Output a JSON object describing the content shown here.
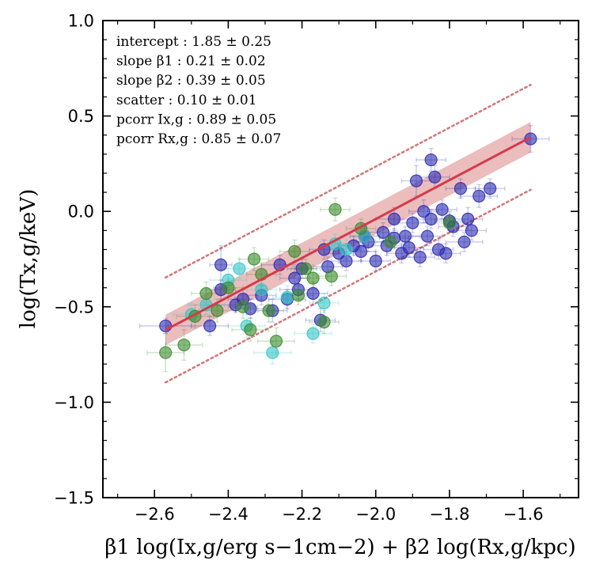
{
  "chart_data": {
    "type": "scatter",
    "title": "",
    "xlabel": "β1 log(Ix,g/erg s−1cm−2) + β2 log(Rx,g/kpc)",
    "ylabel": "log(Tx,g/keV)",
    "xlim": [
      -2.74,
      -1.45
    ],
    "ylim": [
      -1.5,
      1.0
    ],
    "x_ticks": [
      -2.6,
      -2.4,
      -2.2,
      -2.0,
      -1.8,
      -1.6
    ],
    "y_ticks": [
      1.0,
      0.5,
      0.0,
      -0.5,
      -1.0,
      -1.5
    ],
    "x_tick_labels": [
      "−2.6",
      "−2.4",
      "−2.2",
      "−2.0",
      "−1.8",
      "−1.6"
    ],
    "y_tick_labels": [
      "1.0",
      "0.5",
      "0.0",
      "−0.5",
      "−1.0",
      "−1.5"
    ],
    "colors": {
      "navy": "#2a2ab0",
      "teal": "#35c4c4",
      "green": "#3a8a2a",
      "fit_line": "#d43a4a",
      "band": "#e09a9a",
      "scatter_lines": "#d07a7a"
    },
    "fit": {
      "x_range": [
        -2.57,
        -1.58
      ],
      "slope": 1.02,
      "intercept_at_x0": 2.0,
      "band_halfwidth": 0.08,
      "scatter_offset": 0.275
    },
    "annotations": [
      "intercept :  1.85 ± 0.25",
      "slope β1 :  0.21 ± 0.02",
      "slope β2 :  0.39 ± 0.05",
      "scatter :  0.10 ± 0.01",
      "pcorr Ix,g :  0.89 ± 0.05",
      "pcorr Rx,g :  0.85 ± 0.07"
    ],
    "series": [
      {
        "name": "navy",
        "color": "#2a2ab0",
        "points": [
          [
            -2.57,
            -0.6,
            0.07,
            0.04
          ],
          [
            -2.45,
            -0.6,
            0.05,
            0.05
          ],
          [
            -2.42,
            -0.28,
            0.03,
            0.1
          ],
          [
            -2.42,
            -0.41,
            0.04,
            0.05
          ],
          [
            -2.38,
            -0.49,
            0.05,
            0.04
          ],
          [
            -2.34,
            -0.51,
            0.04,
            0.05
          ],
          [
            -2.31,
            -0.44,
            0.04,
            0.05
          ],
          [
            -2.28,
            -0.52,
            0.04,
            0.06
          ],
          [
            -2.26,
            -0.28,
            0.05,
            0.05
          ],
          [
            -2.24,
            -0.46,
            0.05,
            0.05
          ],
          [
            -2.22,
            -0.35,
            0.04,
            0.06
          ],
          [
            -2.21,
            -0.41,
            0.05,
            0.05
          ],
          [
            -2.2,
            -0.3,
            0.04,
            0.05
          ],
          [
            -2.17,
            -0.43,
            0.04,
            0.06
          ],
          [
            -2.15,
            -0.57,
            0.04,
            0.06
          ],
          [
            -2.14,
            -0.2,
            0.04,
            0.05
          ],
          [
            -2.1,
            -0.22,
            0.04,
            0.05
          ],
          [
            -2.08,
            -0.26,
            0.04,
            0.05
          ],
          [
            -2.06,
            -0.18,
            0.04,
            0.05
          ],
          [
            -2.04,
            -0.21,
            0.04,
            0.05
          ],
          [
            -2.02,
            -0.16,
            0.04,
            0.05
          ],
          [
            -2.0,
            -0.26,
            0.04,
            0.05
          ],
          [
            -1.98,
            -0.11,
            0.04,
            0.05
          ],
          [
            -1.97,
            -0.18,
            0.04,
            0.05
          ],
          [
            -1.95,
            -0.04,
            0.05,
            0.06
          ],
          [
            -1.95,
            -0.14,
            0.04,
            0.05
          ],
          [
            -1.93,
            -0.22,
            0.04,
            0.05
          ],
          [
            -1.92,
            -0.13,
            0.04,
            0.05
          ],
          [
            -1.91,
            -0.19,
            0.04,
            0.05
          ],
          [
            -1.9,
            -0.06,
            0.04,
            0.05
          ],
          [
            -1.89,
            0.16,
            0.04,
            0.08
          ],
          [
            -1.88,
            -0.24,
            0.04,
            0.05
          ],
          [
            -1.87,
            0.0,
            0.04,
            0.06
          ],
          [
            -1.86,
            -0.13,
            0.04,
            0.05
          ],
          [
            -1.85,
            -0.04,
            0.04,
            0.05
          ],
          [
            -1.84,
            0.18,
            0.04,
            0.06
          ],
          [
            -1.83,
            -0.2,
            0.04,
            0.05
          ],
          [
            -1.82,
            0.01,
            0.04,
            0.05
          ],
          [
            -1.81,
            -0.22,
            0.04,
            0.05
          ],
          [
            -1.8,
            -0.05,
            0.04,
            0.05
          ],
          [
            -1.79,
            -0.08,
            0.04,
            0.05
          ],
          [
            -1.77,
            0.12,
            0.04,
            0.05
          ],
          [
            -1.76,
            -0.16,
            0.05,
            0.05
          ],
          [
            -1.75,
            -0.04,
            0.04,
            0.06
          ],
          [
            -1.74,
            -0.1,
            0.04,
            0.05
          ],
          [
            -1.72,
            0.08,
            0.05,
            0.06
          ],
          [
            -1.69,
            0.12,
            0.04,
            0.05
          ],
          [
            -1.85,
            0.27,
            0.04,
            0.06
          ],
          [
            -1.58,
            0.38,
            0.05,
            0.07
          ],
          [
            -2.36,
            -0.46,
            0.04,
            0.05
          ],
          [
            -2.13,
            -0.29,
            0.04,
            0.05
          ],
          [
            -2.03,
            -0.13,
            0.04,
            0.05
          ]
        ]
      },
      {
        "name": "teal",
        "color": "#35c4c4",
        "points": [
          [
            -2.5,
            -0.54,
            0.05,
            0.06
          ],
          [
            -2.46,
            -0.49,
            0.05,
            0.05
          ],
          [
            -2.4,
            -0.36,
            0.05,
            0.06
          ],
          [
            -2.37,
            -0.3,
            0.04,
            0.05
          ],
          [
            -2.35,
            -0.6,
            0.05,
            0.06
          ],
          [
            -2.31,
            -0.41,
            0.04,
            0.05
          ],
          [
            -2.28,
            -0.74,
            0.05,
            0.06
          ],
          [
            -2.24,
            -0.45,
            0.04,
            0.06
          ],
          [
            -2.17,
            -0.64,
            0.05,
            0.05
          ],
          [
            -2.14,
            -0.48,
            0.04,
            0.05
          ],
          [
            -2.11,
            -0.17,
            0.04,
            0.05
          ],
          [
            -2.08,
            -0.2,
            0.04,
            0.05
          ],
          [
            -2.03,
            -0.13,
            0.04,
            0.05
          ]
        ]
      },
      {
        "name": "green",
        "color": "#3a8a2a",
        "points": [
          [
            -2.57,
            -0.74,
            0.05,
            0.1
          ],
          [
            -2.52,
            -0.7,
            0.05,
            0.08
          ],
          [
            -2.49,
            -0.55,
            0.05,
            0.06
          ],
          [
            -2.46,
            -0.43,
            0.04,
            0.06
          ],
          [
            -2.43,
            -0.52,
            0.05,
            0.06
          ],
          [
            -2.4,
            -0.4,
            0.04,
            0.05
          ],
          [
            -2.36,
            -0.5,
            0.04,
            0.06
          ],
          [
            -2.34,
            -0.62,
            0.05,
            0.06
          ],
          [
            -2.33,
            -0.25,
            0.04,
            0.06
          ],
          [
            -2.31,
            -0.33,
            0.04,
            0.06
          ],
          [
            -2.29,
            -0.52,
            0.04,
            0.06
          ],
          [
            -2.27,
            -0.68,
            0.05,
            0.07
          ],
          [
            -2.22,
            -0.21,
            0.04,
            0.06
          ],
          [
            -2.19,
            -0.3,
            0.04,
            0.05
          ],
          [
            -2.17,
            -0.35,
            0.04,
            0.05
          ],
          [
            -2.14,
            -0.58,
            0.04,
            0.06
          ],
          [
            -2.12,
            -0.34,
            0.04,
            0.05
          ],
          [
            -2.11,
            0.01,
            0.04,
            0.06
          ],
          [
            -2.04,
            -0.09,
            0.04,
            0.05
          ],
          [
            -1.96,
            -0.16,
            0.04,
            0.05
          ],
          [
            -1.8,
            -0.06,
            0.04,
            0.05
          ],
          [
            -2.21,
            -0.44,
            0.04,
            0.05
          ]
        ]
      }
    ]
  }
}
